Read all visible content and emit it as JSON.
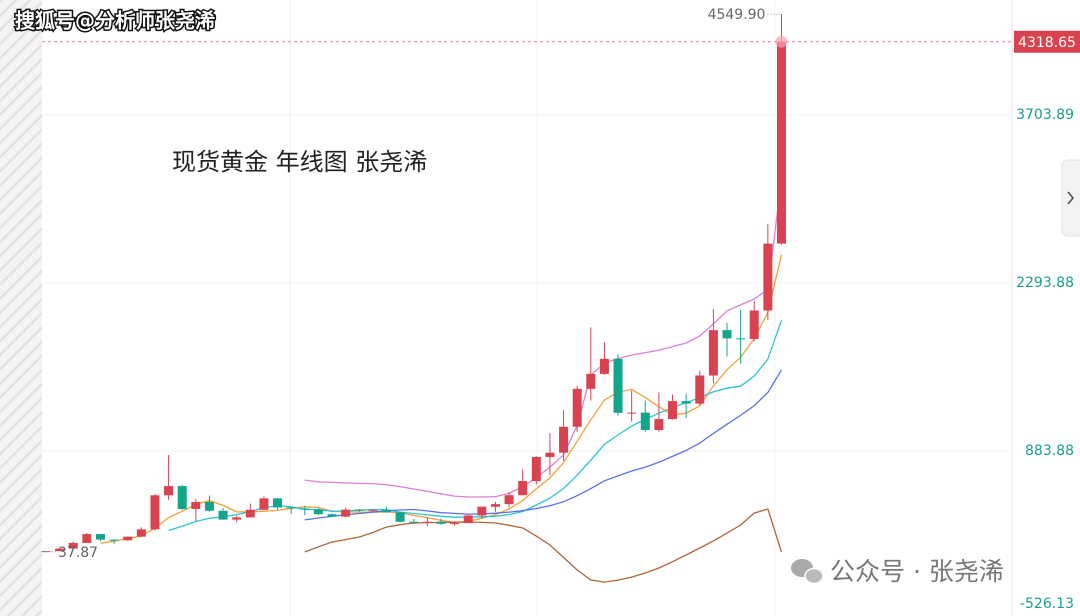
{
  "chart_data": {
    "type": "candlestick",
    "title": "现货黄金  年线图  张尧浠",
    "watermark": "搜狐号@分析师张尧浠",
    "footer": "公众号 · 张尧浠",
    "up_color": "#d9434f",
    "down_color": "#12a58c",
    "open": [
      37.4,
      43.7,
      64.9,
      112.3,
      186.5,
      140.3,
      134.5,
      165,
      226,
      512,
      589.5,
      397.5,
      456.9,
      382.4,
      308.3,
      327,
      390.9,
      486.5,
      410.15,
      401,
      393.1,
      353.4,
      333.3,
      391.75,
      383.25,
      387,
      369.25,
      290.2,
      287.8,
      290.25,
      272.65,
      279,
      342.75,
      416.25,
      438,
      513,
      632,
      833.75,
      869.75,
      1087.5,
      1405.5,
      1531,
      1657.5,
      1204.5,
      1206,
      1060,
      1151.7,
      1302.8,
      1281.65,
      1517.3,
      1898.4,
      1829.2,
      1824,
      2062.9,
      2624.5
    ],
    "high": [
      44,
      70,
      127,
      197.5,
      186.5,
      141,
      167.9,
      243.7,
      524,
      850,
      599,
      481,
      509.3,
      405.8,
      340.9,
      442.8,
      502.8,
      490,
      417.2,
      423.8,
      403,
      359.6,
      407.5,
      397.5,
      396.9,
      416,
      369.5,
      313.4,
      326,
      316.6,
      293.3,
      349.3,
      417.3,
      456.8,
      537.5,
      730,
      841.1,
      1033.9,
      1226.4,
      1431.3,
      1921.2,
      1796.1,
      1696.5,
      1392.1,
      1307.5,
      1375.3,
      1357.6,
      1366,
      1557,
      2075.1,
      1959.3,
      2070.4,
      2144.7,
      2790.1,
      4549.9
    ],
    "low": [
      37.87,
      43.3,
      63.9,
      112.3,
      128.8,
      103.1,
      129.2,
      165,
      216.6,
      474,
      391.3,
      296.8,
      374.5,
      307,
      284.3,
      326,
      390,
      389,
      355.8,
      345.9,
      344.3,
      330.2,
      326.2,
      369.3,
      372.4,
      367.4,
      283,
      273.4,
      252.8,
      263.8,
      255.8,
      277.8,
      319.9,
      373.3,
      411.1,
      513,
      603.8,
      680.8,
      801.6,
      1044.5,
      1307.9,
      1522.7,
      1180.7,
      1130.4,
      1046.2,
      1046.5,
      1146.5,
      1160.3,
      1266.3,
      1451,
      1676.9,
      1614.9,
      1804.8,
      1984.3,
      2614.6
    ],
    "close": [
      43.6,
      64.9,
      112.3,
      186.5,
      140.3,
      134.5,
      164.95,
      226,
      512,
      589.5,
      397.5,
      456.9,
      382.4,
      308.3,
      327,
      390.9,
      486.5,
      410.15,
      401,
      393.1,
      353.4,
      333.3,
      391.75,
      383.25,
      387,
      369.25,
      290.2,
      287.8,
      290.25,
      272.65,
      279,
      342.75,
      416.25,
      438,
      513,
      632,
      833.75,
      869.75,
      1087.5,
      1405.5,
      1531,
      1657.5,
      1204.5,
      1206,
      1060,
      1151.7,
      1302.8,
      1281.65,
      1517.3,
      1898.4,
      1829.2,
      1824,
      2062.9,
      2624.5,
      4318.65
    ],
    "lines": [
      {
        "color": "#f5a03a",
        "values": [
          null,
          null,
          null,
          null,
          110,
          128,
          148,
          170,
          236,
          325,
          378,
          436,
          468,
          427,
          374,
          373,
          379,
          385,
          403,
          416,
          409,
          378,
          374,
          371,
          370,
          373,
          364,
          343,
          325,
          302,
          284,
          295,
          320,
          350,
          398,
          468,
          567,
          657,
          787,
          966,
          1146,
          1311,
          1378,
          1401,
          1332,
          1256,
          1185,
          1201,
          1263,
          1430,
          1566,
          1670,
          1826,
          2048,
          2532
        ]
      },
      {
        "color": "#2cc3d5",
        "values": [
          null,
          null,
          null,
          null,
          null,
          null,
          null,
          null,
          null,
          217,
          253,
          292,
          319,
          331,
          350,
          376,
          408,
          426,
          415,
          395,
          391,
          379,
          380,
          387,
          393,
          391,
          371,
          359,
          348,
          336,
          328,
          329,
          332,
          337,
          350,
          376,
          431,
          489,
          569,
          682,
          807,
          939,
          1018,
          1094,
          1149,
          1201,
          1248,
          1289,
          1332,
          1381,
          1411,
          1428,
          1513,
          1655,
          1981
        ]
      },
      {
        "color": "#5b72e6",
        "values": [
          null,
          null,
          null,
          null,
          null,
          null,
          null,
          null,
          null,
          null,
          null,
          null,
          null,
          null,
          null,
          null,
          null,
          null,
          null,
          306,
          322,
          335,
          349,
          359,
          371,
          383,
          389,
          393,
          381,
          366,
          360,
          354,
          356,
          362,
          371,
          383,
          401,
          424,
          458,
          509,
          568,
          634,
          675,
          716,
          749,
          789,
          839,
          889,
          950,
          1032,
          1109,
          1183,
          1265,
          1375,
          1565
        ]
      },
      {
        "color": "#df7fd8",
        "values": [
          null,
          null,
          null,
          null,
          null,
          null,
          null,
          null,
          null,
          null,
          null,
          null,
          null,
          null,
          null,
          null,
          null,
          null,
          null,
          640,
          625,
          620,
          615,
          612,
          610,
          600,
          585,
          565,
          545,
          525,
          505,
          498,
          498,
          500,
          530,
          585,
          660,
          750,
          850,
          1100,
          1520,
          1620,
          1660,
          1690,
          1710,
          1730,
          1760,
          1790,
          1850,
          1950,
          2060,
          2110,
          2160,
          2240,
          3170
        ]
      },
      {
        "color": "#b0643a",
        "values": [
          null,
          null,
          null,
          null,
          null,
          null,
          null,
          null,
          null,
          null,
          null,
          null,
          null,
          null,
          null,
          null,
          null,
          null,
          null,
          37,
          80,
          120,
          140,
          162,
          200,
          246,
          265,
          280,
          283,
          285,
          286,
          288,
          285,
          280,
          260,
          238,
          170,
          95,
          -10,
          -115,
          -199,
          -216,
          -200,
          -174,
          -140,
          -98,
          -45,
          11,
          70,
          129,
          195,
          263,
          363,
          397,
          36
        ]
      }
    ],
    "high_label": {
      "value": 4549.9,
      "label": "4549.90"
    },
    "ylim": [
      -500.9,
      4669.1
    ],
    "yticks": [
      -526.13,
      883.88,
      2293.88,
      3703.89
    ],
    "grid": true
  }
}
